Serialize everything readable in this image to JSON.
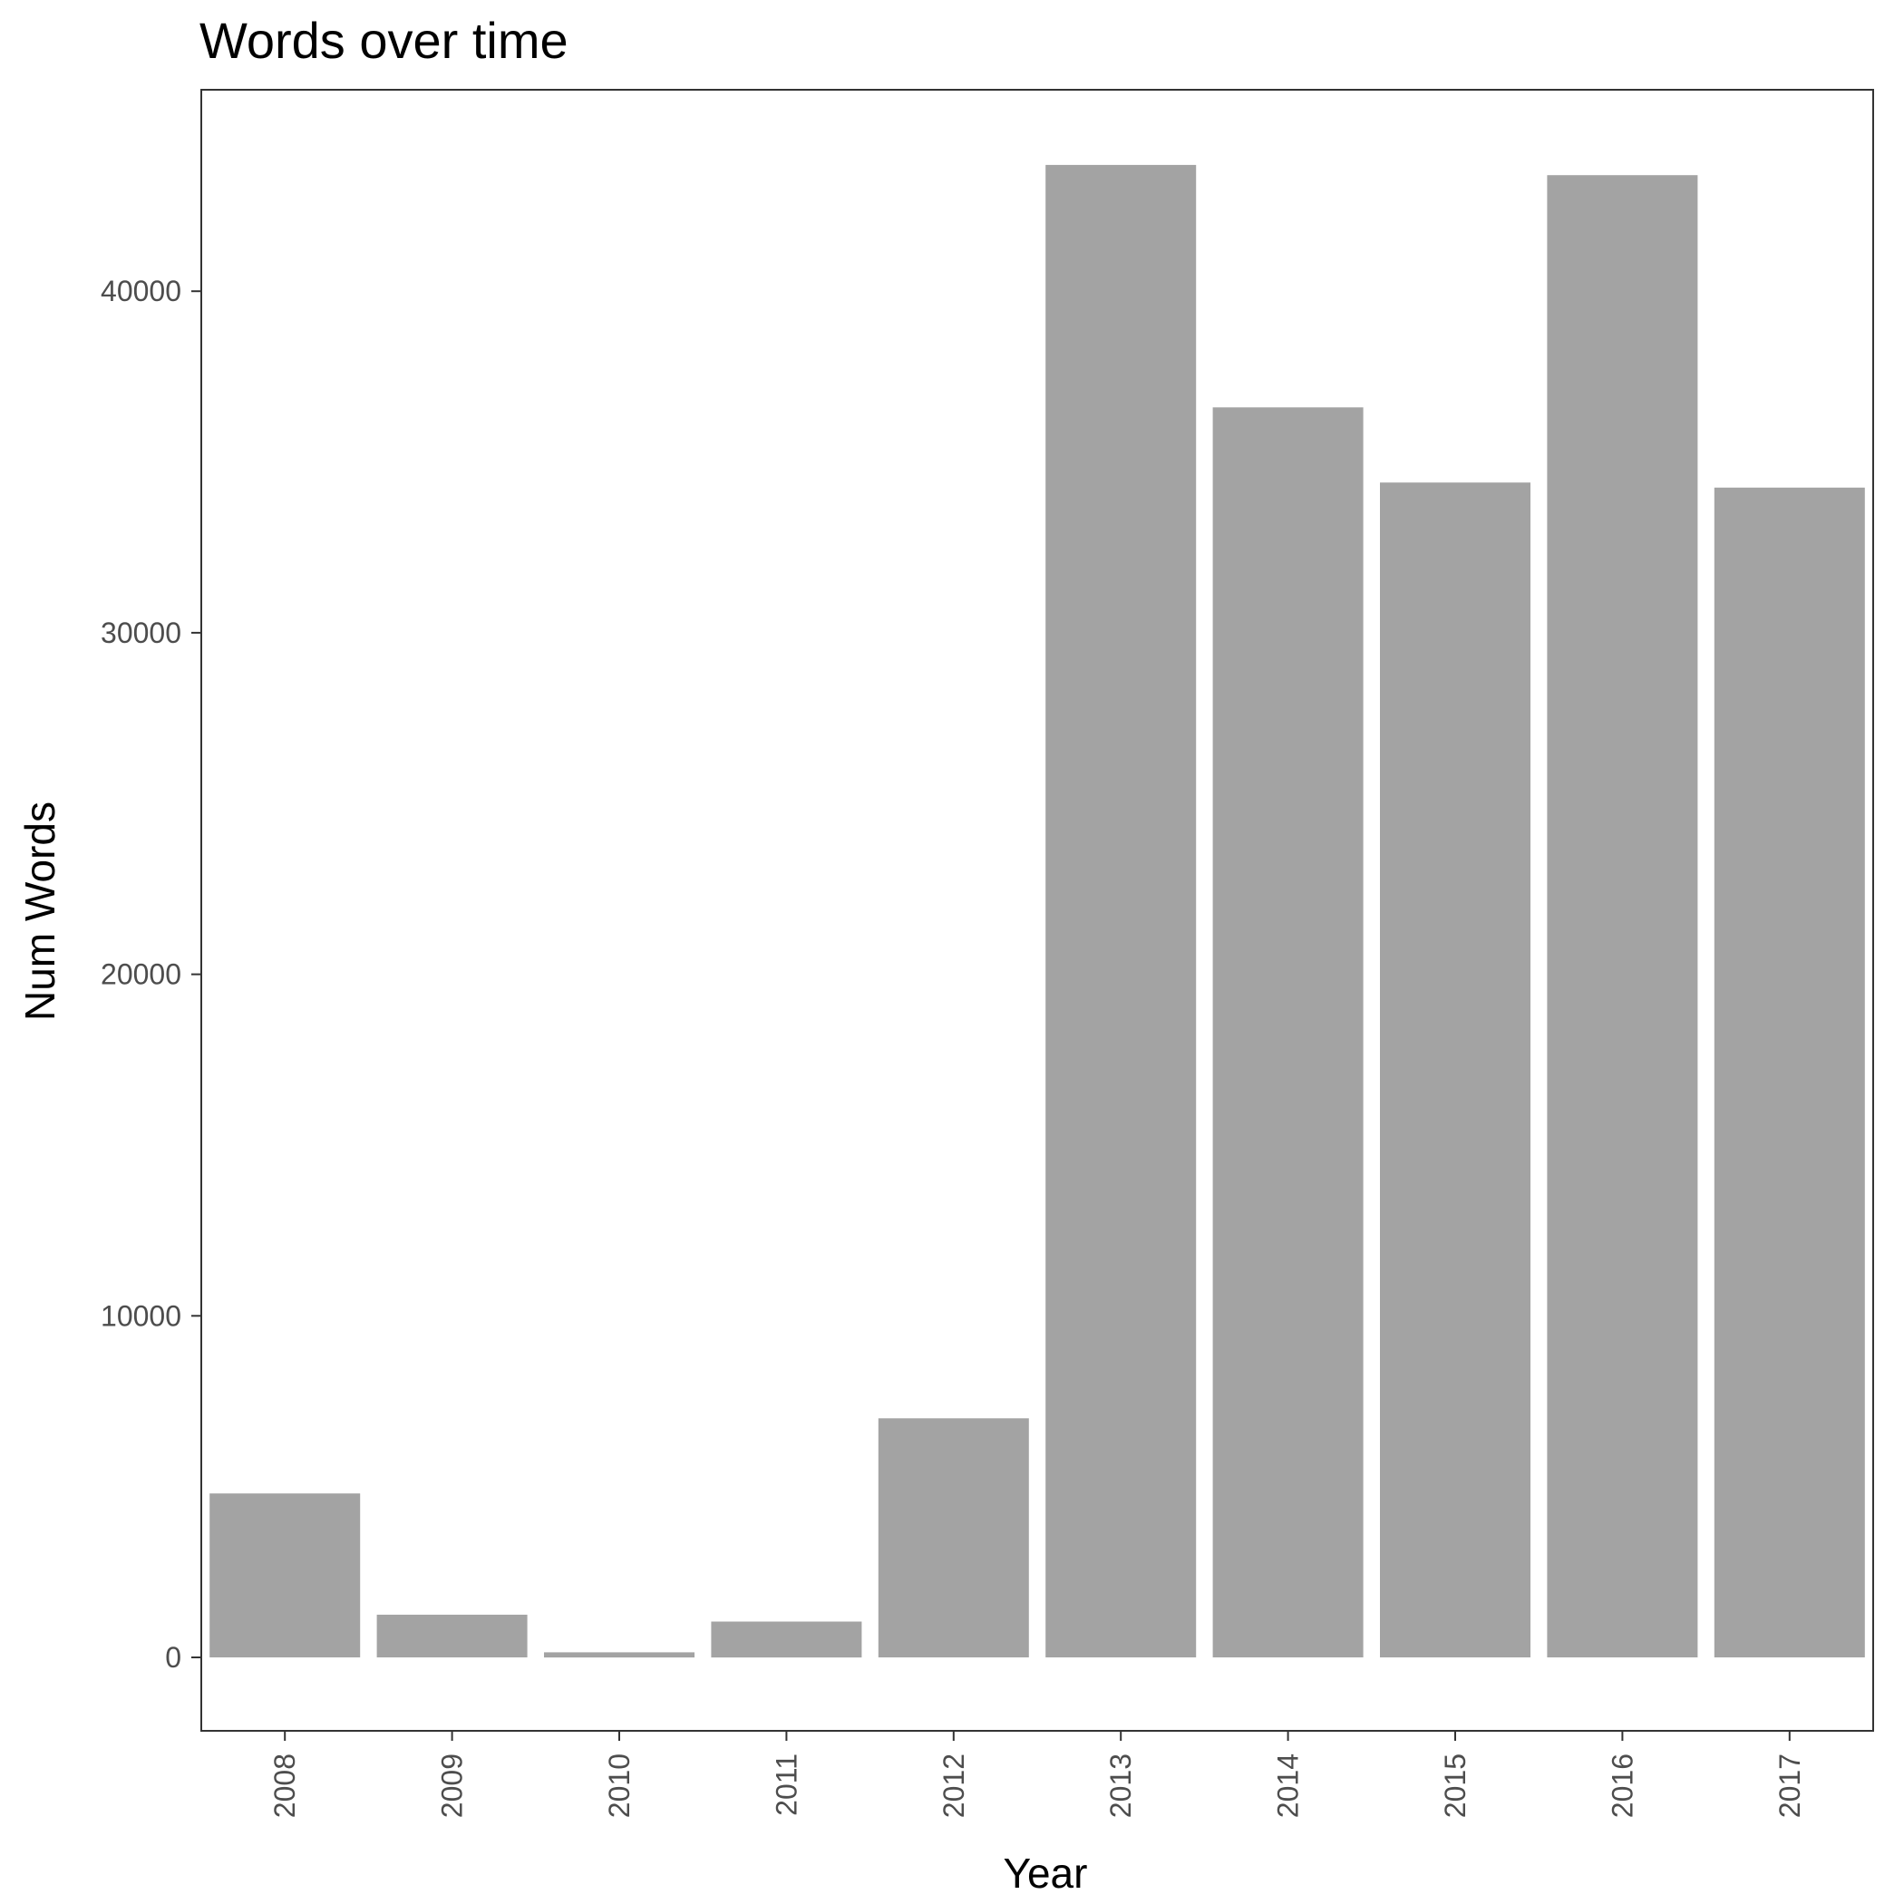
{
  "chart_data": {
    "type": "bar",
    "title": "Words over time",
    "xlabel": "Year",
    "ylabel": "Num Words",
    "categories": [
      "2008",
      "2009",
      "2010",
      "2011",
      "2012",
      "2013",
      "2014",
      "2015",
      "2016",
      "2017"
    ],
    "values": [
      4800,
      1250,
      150,
      1050,
      7000,
      43700,
      36600,
      34400,
      43400,
      34250
    ],
    "ylim": [
      -2150,
      45900
    ],
    "yticks": [
      0,
      10000,
      20000,
      30000,
      40000
    ],
    "ytick_labels": [
      "0",
      "10000",
      "20000",
      "30000",
      "40000"
    ],
    "bar_color": "#a3a3a3",
    "panel_border_color": "#333333",
    "grid": false,
    "x_tick_label_rotation": "vertical"
  }
}
